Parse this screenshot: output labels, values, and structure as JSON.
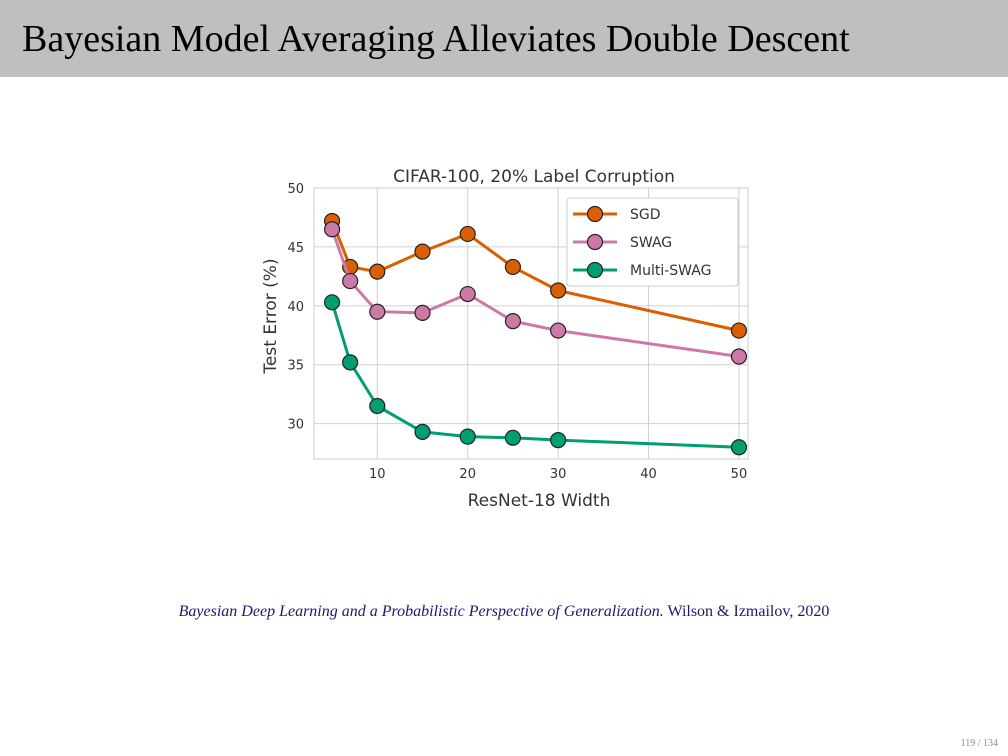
{
  "slide": {
    "title": "Bayesian Model Averaging Alleviates Double Descent",
    "citation_italic": "Bayesian Deep Learning and a Probabilistic Perspective of Generalization.",
    "citation_plain": " Wilson & Izmailov, 2020",
    "page_number": "119 / 134"
  },
  "chart_data": {
    "type": "line",
    "title": "CIFAR-100, 20% Label Corruption",
    "xlabel": "ResNet-18 Width",
    "ylabel": "Test Error (%)",
    "xlim": [
      3,
      51
    ],
    "ylim": [
      27,
      50
    ],
    "xticks": [
      10,
      20,
      30,
      40,
      50
    ],
    "yticks": [
      30,
      35,
      40,
      45,
      50
    ],
    "grid": true,
    "legend_position": "top-right",
    "x": [
      5,
      7,
      10,
      15,
      20,
      25,
      30,
      50
    ],
    "series": [
      {
        "name": "SGD",
        "color": "#d95f02",
        "values": [
          47.2,
          43.3,
          42.9,
          44.6,
          46.1,
          43.3,
          41.3,
          37.9
        ]
      },
      {
        "name": "SWAG",
        "color": "#cc79a7",
        "values": [
          46.5,
          42.1,
          39.5,
          39.4,
          41.0,
          38.7,
          37.9,
          35.7
        ]
      },
      {
        "name": "Multi-SWAG",
        "color": "#009e73",
        "values": [
          40.3,
          35.2,
          31.5,
          29.3,
          28.9,
          28.8,
          28.6,
          28.0
        ]
      }
    ]
  }
}
